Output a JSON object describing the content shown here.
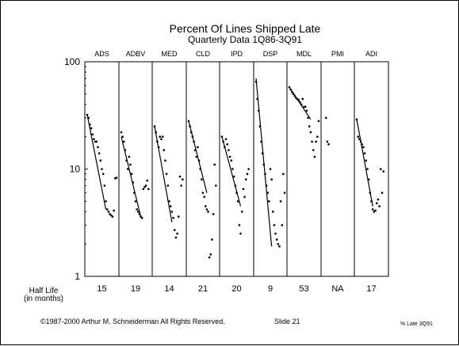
{
  "chart_data": {
    "type": "scatter",
    "title": "Percent Of Lines Shipped Late",
    "subtitle": "Quarterly Data 1Q86-3Q91",
    "y_scale": "log",
    "ylim": [
      1,
      100
    ],
    "y_ticks": [
      "1",
      "10",
      "100"
    ],
    "grid": false,
    "half_life_label": "Half Life",
    "half_life_unit": "(in months)",
    "panels": [
      {
        "name": "ADS",
        "half_life": "15",
        "points": [
          [
            0,
            32
          ],
          [
            1,
            30
          ],
          [
            2,
            26
          ],
          [
            3,
            24
          ],
          [
            4,
            21
          ],
          [
            5,
            19
          ],
          [
            6,
            18
          ],
          [
            7,
            18
          ],
          [
            8,
            16
          ],
          [
            9,
            14
          ],
          [
            10,
            12
          ],
          [
            11,
            10
          ],
          [
            12,
            9
          ],
          [
            13,
            7
          ],
          [
            14,
            5
          ],
          [
            15,
            4.2
          ],
          [
            16,
            4
          ],
          [
            17,
            3.8
          ],
          [
            18,
            3.7
          ],
          [
            19,
            3.6
          ],
          [
            20,
            4.1
          ],
          [
            21,
            8.2
          ],
          [
            22,
            8.3
          ]
        ],
        "trend": [
          [
            0,
            32
          ],
          [
            14,
            4.2
          ]
        ]
      },
      {
        "name": "ADBV",
        "half_life": "19",
        "points": [
          [
            0,
            22
          ],
          [
            1,
            20
          ],
          [
            2,
            18
          ],
          [
            3,
            15
          ],
          [
            4,
            12
          ],
          [
            5,
            10
          ],
          [
            6,
            13
          ],
          [
            7,
            11
          ],
          [
            8,
            9
          ],
          [
            9,
            7.5
          ],
          [
            10,
            6
          ],
          [
            11,
            5
          ],
          [
            12,
            4.2
          ],
          [
            13,
            4
          ],
          [
            14,
            3.8
          ],
          [
            15,
            3.6
          ],
          [
            16,
            3.5
          ],
          [
            17,
            6.5
          ],
          [
            18,
            6.8
          ],
          [
            19,
            7
          ],
          [
            20,
            7.8
          ],
          [
            21,
            6.5
          ]
        ],
        "trend": [
          [
            0,
            20
          ],
          [
            15,
            3.6
          ]
        ]
      },
      {
        "name": "MED",
        "half_life": "14",
        "points": [
          [
            0,
            25
          ],
          [
            1,
            22
          ],
          [
            2,
            18
          ],
          [
            3,
            16
          ],
          [
            4,
            20
          ],
          [
            5,
            19
          ],
          [
            6,
            20
          ],
          [
            7,
            15
          ],
          [
            8,
            12
          ],
          [
            9,
            9
          ],
          [
            10,
            7
          ],
          [
            11,
            5
          ],
          [
            12,
            4.5
          ],
          [
            13,
            4
          ],
          [
            14,
            3.5
          ],
          [
            15,
            2.7
          ],
          [
            16,
            2.3
          ],
          [
            17,
            2.5
          ],
          [
            18,
            3.6
          ],
          [
            19,
            8.5
          ],
          [
            20,
            7
          ],
          [
            21,
            8
          ]
        ],
        "trend": [
          [
            0,
            25
          ],
          [
            13,
            3.2
          ]
        ]
      },
      {
        "name": "CLD",
        "half_life": "21",
        "points": [
          [
            0,
            28
          ],
          [
            1,
            25
          ],
          [
            2,
            22
          ],
          [
            3,
            20
          ],
          [
            4,
            18
          ],
          [
            5,
            15
          ],
          [
            6,
            13
          ],
          [
            7,
            16
          ],
          [
            8,
            12
          ],
          [
            9,
            10
          ],
          [
            10,
            8
          ],
          [
            11,
            6
          ],
          [
            12,
            5.5
          ],
          [
            13,
            4.5
          ],
          [
            14,
            4.2
          ],
          [
            15,
            4
          ],
          [
            16,
            1.5
          ],
          [
            17,
            1.6
          ],
          [
            18,
            2.2
          ],
          [
            19,
            3.8
          ],
          [
            20,
            11
          ],
          [
            21,
            7
          ]
        ],
        "trend": [
          [
            0,
            28
          ],
          [
            14,
            6
          ]
        ]
      },
      {
        "name": "IPD",
        "half_life": "20",
        "points": [
          [
            0,
            20
          ],
          [
            1,
            18
          ],
          [
            2,
            16
          ],
          [
            3,
            19
          ],
          [
            4,
            17
          ],
          [
            5,
            15
          ],
          [
            6,
            13
          ],
          [
            7,
            12
          ],
          [
            8,
            10
          ],
          [
            9,
            8.5
          ],
          [
            10,
            7
          ],
          [
            11,
            6
          ],
          [
            12,
            5
          ],
          [
            13,
            3
          ],
          [
            14,
            2.5
          ],
          [
            15,
            4
          ],
          [
            16,
            6.5
          ],
          [
            17,
            5.5
          ],
          [
            18,
            8
          ],
          [
            19,
            9
          ],
          [
            20,
            10
          ]
        ],
        "trend": [
          [
            0,
            20
          ],
          [
            14,
            4.5
          ]
        ]
      },
      {
        "name": "DSP",
        "half_life": "9",
        "points": [
          [
            0,
            65
          ],
          [
            1,
            45
          ],
          [
            2,
            35
          ],
          [
            3,
            25
          ],
          [
            4,
            18
          ],
          [
            5,
            14
          ],
          [
            6,
            11
          ],
          [
            7,
            9
          ],
          [
            8,
            7
          ],
          [
            9,
            6
          ],
          [
            10,
            5
          ],
          [
            11,
            10
          ],
          [
            12,
            8
          ],
          [
            13,
            4
          ],
          [
            14,
            3
          ],
          [
            15,
            2.5
          ],
          [
            16,
            2.2
          ],
          [
            17,
            2
          ],
          [
            18,
            1.9
          ],
          [
            19,
            5
          ],
          [
            20,
            3
          ],
          [
            21,
            9
          ],
          [
            22,
            6
          ]
        ],
        "trend": [
          [
            0,
            70
          ],
          [
            12,
            1.9
          ]
        ]
      },
      {
        "name": "MDL",
        "half_life": "53",
        "points": [
          [
            0,
            58
          ],
          [
            1,
            55
          ],
          [
            2,
            52
          ],
          [
            3,
            50
          ],
          [
            4,
            48
          ],
          [
            5,
            46
          ],
          [
            6,
            45
          ],
          [
            7,
            44
          ],
          [
            8,
            42
          ],
          [
            9,
            40
          ],
          [
            10,
            45
          ],
          [
            11,
            38
          ],
          [
            12,
            38
          ],
          [
            13,
            35
          ],
          [
            14,
            30
          ],
          [
            15,
            25
          ],
          [
            16,
            22
          ],
          [
            17,
            18
          ],
          [
            18,
            15
          ],
          [
            19,
            13
          ],
          [
            20,
            18
          ],
          [
            21,
            20
          ],
          [
            22,
            28
          ]
        ],
        "trend": [
          [
            0,
            58
          ],
          [
            16,
            29
          ]
        ]
      },
      {
        "name": "PMI",
        "half_life": "NA",
        "points": [
          [
            2,
            30
          ],
          [
            3,
            18
          ],
          [
            4,
            17
          ]
        ],
        "trend": []
      },
      {
        "name": "ADI",
        "half_life": "17",
        "points": [
          [
            0,
            29
          ],
          [
            1,
            20
          ],
          [
            2,
            19
          ],
          [
            3,
            18
          ],
          [
            4,
            17
          ],
          [
            5,
            16
          ],
          [
            6,
            14
          ],
          [
            7,
            12
          ],
          [
            8,
            10
          ],
          [
            9,
            8
          ],
          [
            10,
            6
          ],
          [
            11,
            5
          ],
          [
            12,
            4.2
          ],
          [
            13,
            4
          ],
          [
            14,
            4.1
          ],
          [
            15,
            4.8
          ],
          [
            16,
            5.2
          ],
          [
            17,
            4.5
          ],
          [
            18,
            10
          ],
          [
            19,
            6
          ],
          [
            20,
            9.5
          ]
        ],
        "trend": [
          [
            0,
            29
          ],
          [
            12,
            4.5
          ]
        ]
      }
    ]
  },
  "footer": {
    "copyright": "©1987-2000 Arthur M. Schneiderman All Rights Reserved.",
    "slide": "Slide 21",
    "file": "% Late 3Q91"
  }
}
